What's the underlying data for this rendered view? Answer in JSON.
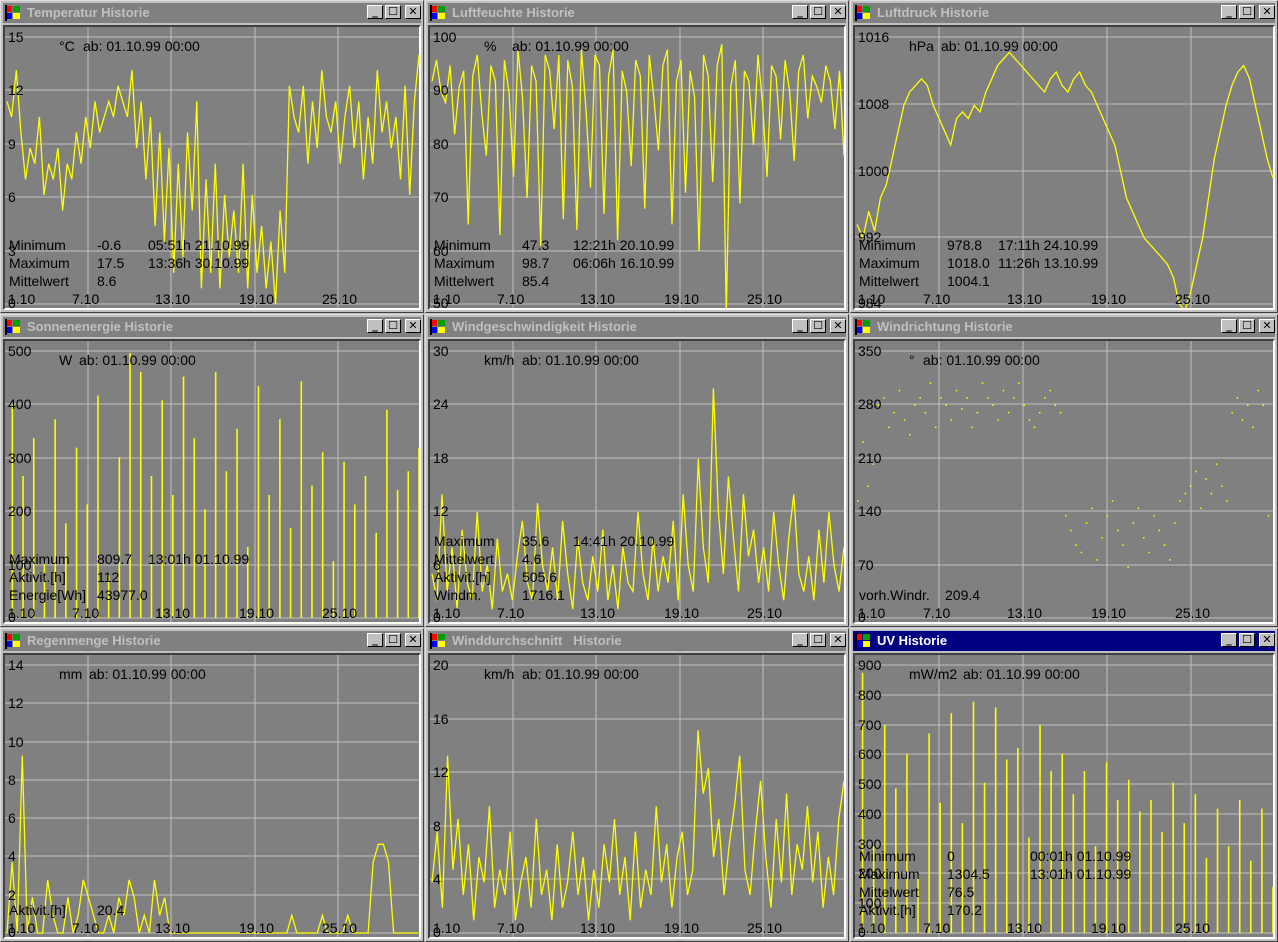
{
  "colors": {
    "plot_bg": "#808080",
    "trace": "#ffff00",
    "grid": "#c0c0c0",
    "title_active": "#000080",
    "title_inactive": "#808080"
  },
  "buttons": {
    "minimize": "_",
    "maximize": "☐",
    "close": "✕"
  },
  "icons": {
    "system_menu": "windows-flag-icon"
  },
  "x_ticks": [
    "1.10",
    "7.10",
    "13.10",
    "19.10",
    "25.10"
  ],
  "windows": [
    {
      "id": "temp",
      "title": "Temperatur Historie",
      "active": false,
      "unit": "°C",
      "since": "ab: 01.10.99 00:00",
      "y_ticks": [
        "15",
        "12",
        "9",
        "6",
        "3",
        "0"
      ],
      "stats": [
        {
          "label": "Minimum",
          "value": "-0.6",
          "time": "05:51h 21.10.99"
        },
        {
          "label": "Maximum",
          "value": "17.5",
          "time": "13:36h 30.10.99"
        },
        {
          "label": "Mittelwert",
          "value": "8.6",
          "time": ""
        }
      ],
      "chart_data": {
        "type": "line",
        "ylim": [
          0,
          17
        ],
        "values": [
          13,
          12,
          15,
          11,
          8,
          10,
          9,
          12,
          7,
          9,
          8,
          10,
          6,
          9,
          8,
          11,
          9,
          12,
          10,
          13,
          11,
          12,
          13,
          12,
          14,
          13,
          12,
          15,
          10,
          13,
          8,
          12,
          5,
          11,
          4,
          10,
          2,
          9,
          3,
          11,
          6,
          13,
          1,
          8,
          2,
          9,
          1,
          7,
          3,
          6,
          2,
          9,
          1,
          7,
          2,
          5,
          1,
          4,
          0,
          6,
          2,
          14,
          12,
          11,
          14,
          9,
          13,
          10,
          15,
          12,
          11,
          13,
          9,
          12,
          14,
          10,
          13,
          8,
          12,
          9,
          15,
          11,
          13,
          10,
          12,
          8,
          14,
          7,
          13,
          16
        ]
      }
    },
    {
      "id": "hum",
      "title": "Luftfeuchte Historie",
      "active": false,
      "unit": "%",
      "since": "ab: 01.10.99 00:00",
      "y_ticks": [
        "100",
        "90",
        "80",
        "70",
        "60",
        "50"
      ],
      "stats": [
        {
          "label": "Minimum",
          "value": "47.3",
          "time": "12:21h 20.10.99"
        },
        {
          "label": "Maximum",
          "value": "98.7",
          "time": "06:06h 16.10.99"
        },
        {
          "label": "Mittelwert",
          "value": "85.4",
          "time": ""
        }
      ],
      "chart_data": {
        "type": "line",
        "ylim": [
          50,
          100
        ],
        "values": [
          92,
          96,
          90,
          88,
          95,
          82,
          91,
          94,
          65,
          93,
          97,
          86,
          78,
          95,
          92,
          63,
          96,
          90,
          74,
          98,
          89,
          70,
          95,
          92,
          61,
          97,
          94,
          83,
          97,
          66,
          96,
          91,
          64,
          98,
          87,
          72,
          97,
          95,
          67,
          93,
          98,
          62,
          94,
          90,
          76,
          96,
          93,
          68,
          97,
          89,
          79,
          95,
          98,
          65,
          92,
          96,
          71,
          94,
          89,
          60,
          97,
          93,
          73,
          95,
          99,
          48,
          91,
          96,
          69,
          94,
          92,
          80,
          97,
          88,
          74,
          95,
          93,
          81,
          96,
          90,
          77,
          94,
          97,
          85,
          93,
          91,
          88,
          95,
          92,
          83,
          94,
          78
        ]
      }
    },
    {
      "id": "press",
      "title": "Luftdruck Historie",
      "active": false,
      "unit": "hPa",
      "since": "ab: 01.10.99 00:00",
      "y_ticks": [
        "1016",
        "1008",
        "1000",
        "992",
        "984"
      ],
      "stats": [
        {
          "label": "Minimum",
          "value": "978.8",
          "time": "17:11h 24.10.99"
        },
        {
          "label": "Maximum",
          "value": "1018.0",
          "time": "11:26h 13.10.99"
        },
        {
          "label": "Mittelwert",
          "value": "1004.1",
          "time": ""
        }
      ],
      "chart_data": {
        "type": "line",
        "ylim": [
          980,
          1020
        ],
        "values": [
          992,
          990,
          994,
          991,
          996,
          998,
          1002,
          1006,
          1010,
          1012,
          1013,
          1014,
          1013,
          1010,
          1008,
          1006,
          1004,
          1008,
          1009,
          1008,
          1010,
          1009,
          1012,
          1014,
          1016,
          1017,
          1018,
          1017,
          1016,
          1015,
          1014,
          1013,
          1012,
          1014,
          1015,
          1013,
          1012,
          1014,
          1015,
          1013,
          1012,
          1010,
          1008,
          1006,
          1004,
          1000,
          996,
          994,
          992,
          990,
          989,
          988,
          987,
          986,
          984,
          980,
          979,
          982,
          986,
          990,
          996,
          1002,
          1006,
          1010,
          1013,
          1015,
          1016,
          1014,
          1010,
          1006,
          1002,
          999
        ]
      }
    },
    {
      "id": "solar",
      "title": "Sonnenenergie Historie",
      "active": false,
      "unit": "W",
      "since": "ab: 01.10.99 00:00",
      "y_ticks": [
        "500",
        "400",
        "300",
        "200",
        "100",
        "0"
      ],
      "stats": [
        {
          "label": "Maximum",
          "value": "809.7",
          "time": "13:01h 01.10.99"
        },
        {
          "label": "Aktivit.[h]",
          "value": "112",
          "time": ""
        },
        {
          "label": "Energie[Wh]",
          "value": "43977.0",
          "time": ""
        }
      ],
      "chart_data": {
        "type": "bar",
        "ylim": [
          0,
          560
        ],
        "values": [
          0,
          450,
          0,
          300,
          0,
          380,
          0,
          120,
          0,
          420,
          0,
          200,
          0,
          360,
          0,
          240,
          0,
          470,
          0,
          90,
          0,
          340,
          0,
          560,
          0,
          520,
          0,
          300,
          0,
          460,
          0,
          260,
          0,
          510,
          0,
          380,
          0,
          230,
          0,
          520,
          0,
          310,
          0,
          400,
          0,
          150,
          0,
          490,
          0,
          260,
          0,
          420,
          0,
          190,
          0,
          500,
          0,
          280,
          0,
          350,
          0,
          120,
          0,
          330,
          0,
          240,
          0,
          300,
          0,
          180,
          0,
          440,
          0,
          270,
          0,
          310,
          0,
          360
        ]
      }
    },
    {
      "id": "windspeed",
      "title": "Windgeschwindigkeit Historie",
      "active": false,
      "unit": "km/h",
      "since": "ab: 01.10.99 00:00",
      "y_ticks": [
        "30",
        "24",
        "18",
        "12",
        "6",
        "0"
      ],
      "stats": [
        {
          "label": "Maximum",
          "value": "35.6",
          "time": "14:41h 20.10.99"
        },
        {
          "label": "Mittelwert",
          "value": "4.6",
          "time": ""
        },
        {
          "label": "Aktivit.[h]",
          "value": "505.6",
          "time": ""
        },
        {
          "label": "Windm.",
          "value": "1716.1",
          "time": ""
        }
      ],
      "chart_data": {
        "type": "line",
        "ylim": [
          0,
          30
        ],
        "values": [
          5,
          2,
          14,
          3,
          8,
          1,
          10,
          4,
          2,
          12,
          3,
          6,
          1,
          9,
          3,
          5,
          2,
          7,
          11,
          4,
          2,
          13,
          6,
          3,
          8,
          2,
          11,
          5,
          1,
          9,
          4,
          2,
          7,
          3,
          10,
          2,
          6,
          1,
          8,
          4,
          3,
          12,
          5,
          2,
          9,
          3,
          7,
          4,
          11,
          2,
          14,
          6,
          3,
          18,
          8,
          4,
          26,
          12,
          5,
          16,
          9,
          3,
          14,
          7,
          10,
          4,
          8,
          3,
          12,
          6,
          2,
          9,
          14,
          5,
          3,
          7,
          2,
          10,
          4,
          12,
          6,
          3,
          8
        ]
      }
    },
    {
      "id": "winddir",
      "title": "Windrichtung Historie",
      "active": false,
      "unit": "°",
      "since": "ab: 01.10.99 00:00",
      "y_ticks": [
        "350",
        "280",
        "210",
        "140",
        "70",
        "0"
      ],
      "stats": [
        {
          "label": "vorh.Windr.",
          "value": "209.4",
          "time": ""
        }
      ],
      "chart_data": {
        "type": "scatter",
        "ylim": [
          0,
          360
        ],
        "values": [
          160,
          240,
          180,
          210,
          290,
          300,
          260,
          280,
          310,
          270,
          250,
          290,
          300,
          280,
          320,
          260,
          300,
          290,
          270,
          310,
          285,
          300,
          260,
          280,
          320,
          300,
          290,
          270,
          310,
          280,
          300,
          320,
          290,
          270,
          260,
          280,
          300,
          310,
          290,
          280,
          140,
          120,
          100,
          90,
          130,
          150,
          80,
          110,
          140,
          160,
          120,
          100,
          70,
          130,
          150,
          110,
          90,
          140,
          120,
          100,
          80,
          130,
          160,
          170,
          180,
          200,
          150,
          190,
          170,
          210,
          180,
          160,
          280,
          300,
          270,
          290,
          260,
          310,
          290,
          140,
          120
        ]
      }
    },
    {
      "id": "rain",
      "title": "Regenmenge Historie",
      "active": false,
      "unit": "mm",
      "since": "ab: 01.10.99 00:00",
      "y_ticks": [
        "14",
        "12",
        "10",
        "8",
        "6",
        "4",
        "2",
        "0"
      ],
      "stats": [
        {
          "label": "Aktivit.[h]",
          "value": "20.4",
          "time": ""
        }
      ],
      "chart_data": {
        "type": "line",
        "ylim": [
          0,
          15
        ],
        "values": [
          0,
          4,
          0,
          10,
          0,
          2,
          0,
          0,
          3,
          1,
          0,
          0,
          2,
          0,
          1,
          3,
          2,
          1,
          0,
          0,
          1,
          0,
          2,
          1,
          3,
          2,
          0,
          1,
          0,
          3,
          1,
          2,
          0,
          0,
          0,
          0,
          0,
          0,
          0,
          0,
          0,
          0,
          0,
          0,
          0,
          0,
          0,
          0,
          0,
          0,
          0,
          0,
          0,
          0,
          0,
          0,
          1,
          0,
          0,
          0,
          0,
          0,
          1,
          0,
          0,
          0,
          0,
          1,
          0,
          0,
          0,
          0,
          4,
          5,
          5,
          4,
          0,
          0,
          0,
          0,
          0,
          0
        ]
      }
    },
    {
      "id": "windavg",
      "title": "Winddurchschnitt   Historie",
      "active": false,
      "unit": "km/h",
      "since": "ab: 01.10.99 00:00",
      "y_ticks": [
        "20",
        "16",
        "12",
        "8",
        "4",
        "0"
      ],
      "stats": [],
      "chart_data": {
        "type": "line",
        "ylim": [
          0,
          21
        ],
        "values": [
          4,
          8,
          2,
          14,
          5,
          9,
          3,
          7,
          1,
          6,
          4,
          10,
          2,
          5,
          3,
          8,
          1,
          4,
          6,
          2,
          9,
          3,
          5,
          1,
          7,
          2,
          4,
          8,
          3,
          6,
          1,
          5,
          2,
          7,
          4,
          9,
          3,
          6,
          1,
          8,
          2,
          5,
          3,
          10,
          4,
          7,
          2,
          6,
          8,
          3,
          5,
          16,
          11,
          13,
          6,
          9,
          3,
          7,
          10,
          14,
          5,
          3,
          8,
          12,
          6,
          2,
          9,
          4,
          11,
          3,
          7,
          5,
          10,
          4,
          8,
          2,
          6,
          3,
          9,
          12
        ]
      }
    },
    {
      "id": "uv",
      "title": "UV Historie",
      "active": true,
      "unit": "mW/m2",
      "since": "ab: 01.10.99 00:00",
      "y_ticks": [
        "900",
        "800",
        "700",
        "600",
        "500",
        "400",
        "300",
        "200",
        "100",
        "0"
      ],
      "stats": [
        {
          "label": "Minimum",
          "value": "0",
          "time": "00:01h 01.10.99"
        },
        {
          "label": "Maximum",
          "value": "1304.5",
          "time": "13:01h 01.10.99"
        },
        {
          "label": "Mittelwert",
          "value": "76.5",
          "time": ""
        },
        {
          "label": "Aktivit.[h]",
          "value": "170.2",
          "time": ""
        }
      ],
      "chart_data": {
        "type": "bar",
        "ylim": [
          0,
          920
        ],
        "values": [
          0,
          900,
          0,
          300,
          0,
          720,
          0,
          500,
          0,
          620,
          0,
          200,
          0,
          690,
          0,
          450,
          0,
          760,
          0,
          380,
          0,
          800,
          0,
          520,
          0,
          780,
          0,
          600,
          0,
          640,
          0,
          330,
          0,
          720,
          0,
          560,
          0,
          620,
          0,
          480,
          0,
          560,
          0,
          300,
          0,
          590,
          0,
          460,
          0,
          530,
          0,
          420,
          0,
          460,
          0,
          350,
          0,
          520,
          0,
          380,
          0,
          480,
          0,
          260,
          0,
          430,
          0,
          300,
          0,
          460,
          0,
          250,
          0,
          430,
          0,
          160
        ]
      }
    }
  ]
}
